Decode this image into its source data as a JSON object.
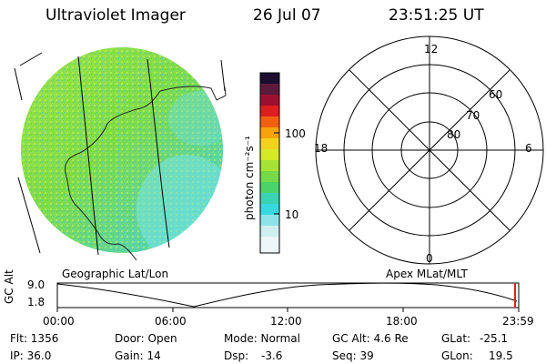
{
  "header": {
    "instrument": "Ultraviolet Imager",
    "date": "26 Jul 07",
    "time": "23:51:25 UT"
  },
  "colorbar": {
    "ticks": [
      "100",
      "10"
    ],
    "unit_label": "photon cm⁻²s⁻¹"
  },
  "panels": {
    "geo_label": "Geographic Lat/Lon",
    "apex_label": "Apex MLat/MLT"
  },
  "polar_plot": {
    "mlt_labels": {
      "top": "12",
      "left": "18",
      "right": "6",
      "bottom": "0"
    },
    "lat_labels": [
      "60",
      "70",
      "80"
    ]
  },
  "altitude_plot": {
    "ylabel": "GC Alt",
    "yticks": [
      "9.0",
      "1.8"
    ],
    "xticks": [
      "00:00",
      "06:00",
      "12:00",
      "18:00",
      "23:59"
    ]
  },
  "footer": {
    "flt": "Flt: 1356",
    "ip": "IP: 36.0",
    "door": "Door: Open",
    "gain": "Gain: 14",
    "mode": "Mode: Normal",
    "dsp_label": "Dsp:",
    "dsp_value": "-3.6",
    "gcalt": "GC Alt: 4.6 Re",
    "seq": "Seq: 39",
    "glat_label": "GLat:",
    "glat_value": "-25.1",
    "glon_label": "GLon:",
    "glon_value": "19.5"
  },
  "colors": {
    "image_green": "#8ee04a",
    "image_cyan": "#3fd9e0",
    "marker": "#e02020"
  }
}
